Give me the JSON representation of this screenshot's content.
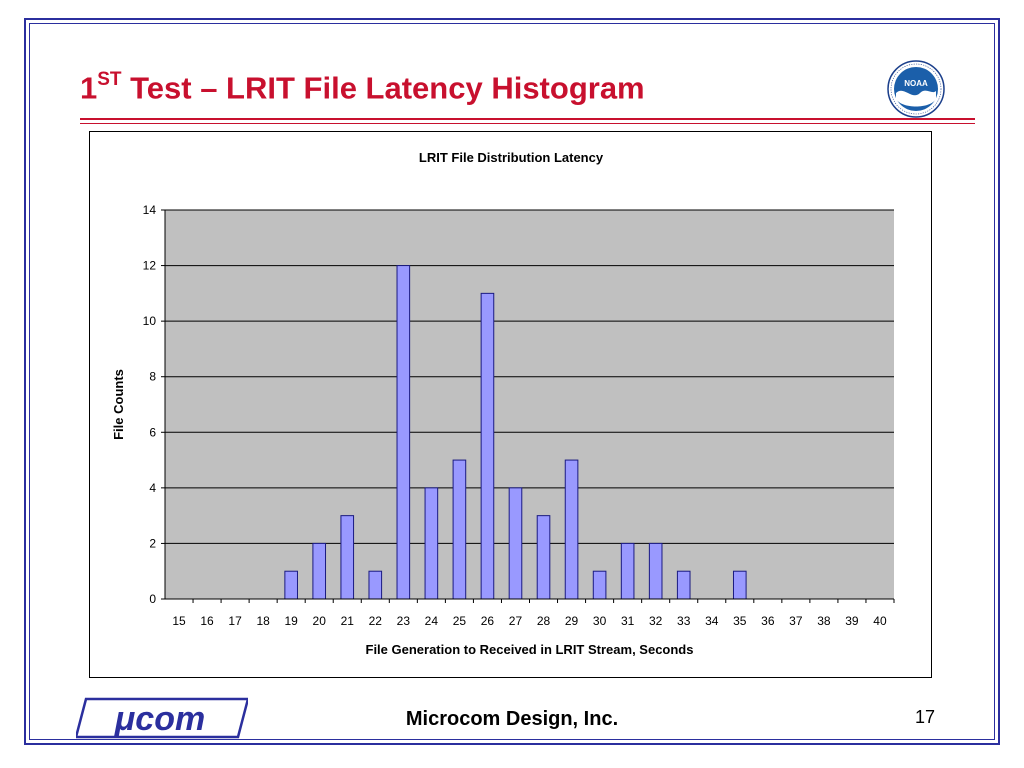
{
  "slide": {
    "title_prefix": "1",
    "title_sup": "ST",
    "title_rest": " Test – LRIT File Latency Histogram",
    "logo_text": "NOAA",
    "company": "Microcom Design, Inc.",
    "brand": "μcom",
    "page_number": "17"
  },
  "colors": {
    "title": "#c8102e",
    "frame": "#2b2f9e",
    "plot_bg": "#c0c0c0",
    "bar_fill": "#9999ff",
    "bar_stroke": "#1a1a80"
  },
  "chart_data": {
    "type": "bar",
    "title": "LRIT File Distribution Latency",
    "xlabel": "File Generation to Received in LRIT Stream, Seconds",
    "ylabel": "File Counts",
    "categories": [
      "15",
      "16",
      "17",
      "18",
      "19",
      "20",
      "21",
      "22",
      "23",
      "24",
      "25",
      "26",
      "27",
      "28",
      "29",
      "30",
      "31",
      "32",
      "33",
      "34",
      "35",
      "36",
      "37",
      "38",
      "39",
      "40"
    ],
    "values": [
      0,
      0,
      0,
      0,
      1,
      2,
      3,
      1,
      12,
      4,
      5,
      11,
      4,
      3,
      5,
      1,
      2,
      2,
      1,
      0,
      1,
      0,
      0,
      0,
      0,
      0
    ],
    "ylim": [
      0,
      14
    ],
    "yticks": [
      0,
      2,
      4,
      6,
      8,
      10,
      12,
      14
    ],
    "grid": true,
    "legend": "none"
  }
}
